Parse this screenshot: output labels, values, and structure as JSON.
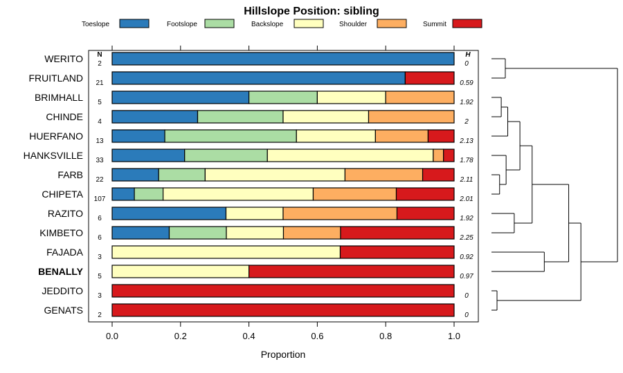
{
  "chart_data": {
    "type": "stacked-bar-horizontal",
    "title": "Hillslope Position: sibling",
    "xlabel": "Proportion",
    "xlim": [
      0,
      1
    ],
    "xticks": [
      "0.0",
      "0.2",
      "0.4",
      "0.6",
      "0.8",
      "1.0"
    ],
    "n_header": "N",
    "h_header": "H",
    "legend": [
      {
        "name": "Toeslope",
        "color": "#2b7bba"
      },
      {
        "name": "Footslope",
        "color": "#abdda4"
      },
      {
        "name": "Backslope",
        "color": "#ffffbf"
      },
      {
        "name": "Shoulder",
        "color": "#fdae61"
      },
      {
        "name": "Summit",
        "color": "#d7191c"
      }
    ],
    "highlight": "BENALLY",
    "rows": [
      {
        "name": "WERITO",
        "n": "2",
        "h": "0",
        "values": [
          1.0,
          0,
          0,
          0,
          0
        ]
      },
      {
        "name": "FRUITLAND",
        "n": "21",
        "h": "0.59",
        "values": [
          0.857,
          0,
          0,
          0,
          0.143
        ]
      },
      {
        "name": "BRIMHALL",
        "n": "5",
        "h": "1.92",
        "values": [
          0.4,
          0.2,
          0.2,
          0.2,
          0
        ]
      },
      {
        "name": "CHINDE",
        "n": "4",
        "h": "2",
        "values": [
          0.25,
          0.25,
          0.25,
          0.25,
          0
        ]
      },
      {
        "name": "HUERFANO",
        "n": "13",
        "h": "2.13",
        "values": [
          0.154,
          0.385,
          0.231,
          0.154,
          0.076
        ]
      },
      {
        "name": "HANKSVILLE",
        "n": "33",
        "h": "1.78",
        "values": [
          0.212,
          0.242,
          0.485,
          0.03,
          0.031
        ]
      },
      {
        "name": "FARB",
        "n": "22",
        "h": "2.11",
        "values": [
          0.136,
          0.136,
          0.409,
          0.227,
          0.092
        ]
      },
      {
        "name": "CHIPETA",
        "n": "107",
        "h": "2.01",
        "values": [
          0.065,
          0.084,
          0.439,
          0.243,
          0.169
        ]
      },
      {
        "name": "RAZITO",
        "n": "6",
        "h": "1.92",
        "values": [
          0.333,
          0,
          0.167,
          0.333,
          0.167
        ]
      },
      {
        "name": "KIMBETO",
        "n": "6",
        "h": "2.25",
        "values": [
          0.167,
          0.167,
          0.167,
          0.167,
          0.332
        ]
      },
      {
        "name": "FAJADA",
        "n": "3",
        "h": "0.92",
        "values": [
          0,
          0,
          0.667,
          0,
          0.333
        ]
      },
      {
        "name": "BENALLY",
        "n": "5",
        "h": "0.97",
        "values": [
          0,
          0,
          0.4,
          0,
          0.6
        ]
      },
      {
        "name": "JEDDITO",
        "n": "3",
        "h": "0",
        "values": [
          0,
          0,
          0,
          0,
          1.0
        ]
      },
      {
        "name": "GENATS",
        "n": "2",
        "h": "0",
        "values": [
          0,
          0,
          0,
          0,
          1.0
        ]
      }
    ],
    "dendrogram": {
      "merges": [
        [
          12,
          13,
          0.0
        ],
        [
          2,
          3,
          0.12
        ],
        [
          6,
          7,
          0.1
        ],
        [
          8,
          9,
          0.28
        ],
        [
          -2,
          4,
          0.2
        ],
        [
          -3,
          5,
          0.18
        ],
        [
          0,
          1,
          0.17
        ],
        [
          10,
          11,
          0.65
        ],
        [
          -5,
          -6,
          0.35
        ],
        [
          -9,
          -4,
          0.5
        ],
        [
          -10,
          -8,
          0.95
        ],
        [
          -11,
          -1,
          1.1
        ],
        [
          -12,
          -7,
          1.55
        ]
      ]
    }
  }
}
